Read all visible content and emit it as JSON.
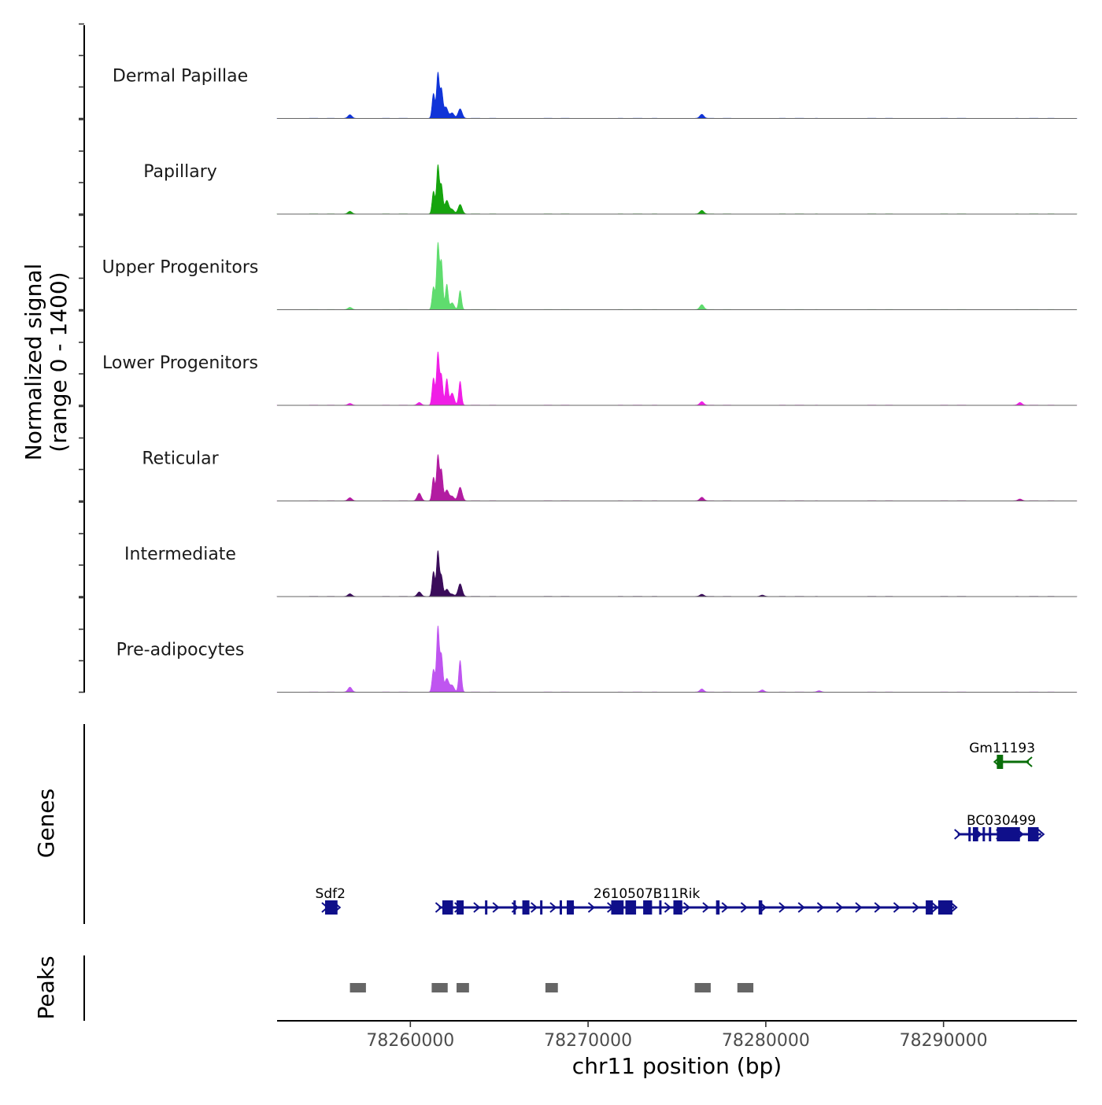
{
  "chart_data": {
    "type": "area",
    "title": "",
    "chromosome": "chr11",
    "xlabel": "chr11 position (bp)",
    "ylabel_line1": "Normalized signal",
    "ylabel_line2": "(range 0 - 1400)",
    "ylim": [
      0,
      1400
    ],
    "xlim": [
      78252500,
      78297500
    ],
    "x_ticks": [
      78260000,
      78270000,
      78280000,
      78290000
    ],
    "x_tick_labels": [
      "78260000",
      "78270000",
      "78280000",
      "78290000"
    ],
    "tracks": [
      {
        "name": "Dermal Papillae",
        "color": "#1034d8",
        "peaks": [
          [
            78256600,
            80
          ],
          [
            78261300,
            550
          ],
          [
            78261550,
            1000
          ],
          [
            78261750,
            620
          ],
          [
            78262000,
            250
          ],
          [
            78262350,
            120
          ],
          [
            78262800,
            210
          ],
          [
            78276400,
            90
          ]
        ]
      },
      {
        "name": "Papillary",
        "color": "#16a40e",
        "peaks": [
          [
            78256600,
            60
          ],
          [
            78261300,
            500
          ],
          [
            78261550,
            1070
          ],
          [
            78261750,
            620
          ],
          [
            78262050,
            300
          ],
          [
            78262350,
            100
          ],
          [
            78262800,
            210
          ],
          [
            78276400,
            80
          ]
        ]
      },
      {
        "name": "Upper Progenitors",
        "color": "#5fdc6e",
        "peaks": [
          [
            78256600,
            50
          ],
          [
            78261300,
            500
          ],
          [
            78261550,
            1450
          ],
          [
            78261750,
            1050
          ],
          [
            78262050,
            560
          ],
          [
            78262350,
            150
          ],
          [
            78262800,
            420
          ],
          [
            78276400,
            110
          ]
        ]
      },
      {
        "name": "Lower Progenitors",
        "color": "#f01ee6",
        "peaks": [
          [
            78256600,
            40
          ],
          [
            78260500,
            60
          ],
          [
            78261300,
            600
          ],
          [
            78261550,
            1160
          ],
          [
            78261750,
            650
          ],
          [
            78262050,
            580
          ],
          [
            78262350,
            270
          ],
          [
            78262800,
            530
          ],
          [
            78276400,
            80
          ],
          [
            78294300,
            60
          ]
        ]
      },
      {
        "name": "Reticular",
        "color": "#b21ca1",
        "peaks": [
          [
            78256600,
            70
          ],
          [
            78260500,
            170
          ],
          [
            78261300,
            520
          ],
          [
            78261550,
            1000
          ],
          [
            78261750,
            660
          ],
          [
            78262050,
            240
          ],
          [
            78262350,
            100
          ],
          [
            78262800,
            300
          ],
          [
            78276400,
            80
          ],
          [
            78294300,
            40
          ]
        ]
      },
      {
        "name": "Intermediate",
        "color": "#3a0c5a",
        "peaks": [
          [
            78256600,
            60
          ],
          [
            78260500,
            100
          ],
          [
            78261300,
            550
          ],
          [
            78261550,
            1000
          ],
          [
            78261750,
            440
          ],
          [
            78262050,
            160
          ],
          [
            78262350,
            50
          ],
          [
            78262800,
            280
          ],
          [
            78276400,
            50
          ],
          [
            78279800,
            30
          ]
        ]
      },
      {
        "name": "Pre-adipocytes",
        "color": "#bf55f0",
        "peaks": [
          [
            78256600,
            110
          ],
          [
            78261300,
            500
          ],
          [
            78261550,
            1440
          ],
          [
            78261750,
            800
          ],
          [
            78262050,
            300
          ],
          [
            78262350,
            150
          ],
          [
            78262800,
            700
          ],
          [
            78276400,
            70
          ],
          [
            78279800,
            50
          ],
          [
            78283000,
            30
          ]
        ]
      }
    ],
    "genes_label": "Genes",
    "genes": [
      {
        "name": "Gm11193",
        "color": "#0a6e0a",
        "row": 0,
        "strand": "-",
        "start": 78293000,
        "end": 78294800,
        "label_x": 78293300,
        "exons": [
          [
            78293000,
            78293350
          ]
        ]
      },
      {
        "name": "BC030499",
        "color": "#0f0f8a",
        "row": 1,
        "strand": "+",
        "start": 78290800,
        "end": 78295500,
        "label_x": 78293250,
        "exons": [
          [
            78291400,
            78291500
          ],
          [
            78291650,
            78291950
          ],
          [
            78292200,
            78292300
          ],
          [
            78292550,
            78292650
          ],
          [
            78293000,
            78294300
          ],
          [
            78294750,
            78295350
          ]
        ]
      },
      {
        "name": "Sdf2",
        "color": "#0f0f8a",
        "row": 2,
        "strand": "+",
        "start": 78255200,
        "end": 78255900,
        "label_x": 78255500,
        "exons": [
          [
            78255200,
            78255900
          ]
        ]
      },
      {
        "name": "2610507B11Rik",
        "color": "#0f0f8a",
        "row": 2,
        "strand": "+",
        "start": 78261600,
        "end": 78290600,
        "label_x": 78273300,
        "exons": [
          [
            78261800,
            78262400
          ],
          [
            78262600,
            78263000
          ],
          [
            78264200,
            78264300
          ],
          [
            78265800,
            78265900
          ],
          [
            78266300,
            78266700
          ],
          [
            78267300,
            78267400
          ],
          [
            78268400,
            78268500
          ],
          [
            78268800,
            78269200
          ],
          [
            78271300,
            78272000
          ],
          [
            78272100,
            78272700
          ],
          [
            78273100,
            78273600
          ],
          [
            78274000,
            78274100
          ],
          [
            78274800,
            78275300
          ],
          [
            78277200,
            78277400
          ],
          [
            78279600,
            78279800
          ],
          [
            78289000,
            78289400
          ],
          [
            78289700,
            78290500
          ]
        ]
      }
    ],
    "peaks_label": "Peaks",
    "peak_regions": [
      [
        78256600,
        78257500
      ],
      [
        78261200,
        78262100
      ],
      [
        78262600,
        78263300
      ],
      [
        78267600,
        78268300
      ],
      [
        78276000,
        78276900
      ],
      [
        78278400,
        78279300
      ]
    ]
  }
}
